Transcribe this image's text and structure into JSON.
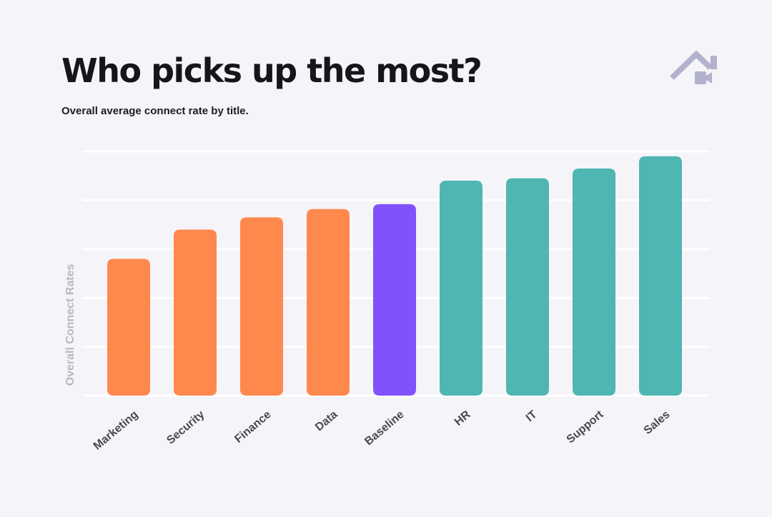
{
  "header": {
    "title": "Who picks up the most?",
    "subtitle": "Overall average connect rate by title."
  },
  "logo": {
    "icon": "house-video-icon",
    "color": "#b3b2cc"
  },
  "chart_data": {
    "type": "bar",
    "title": "Who picks up the most?",
    "subtitle": "Overall average connect rate by title.",
    "xlabel": "",
    "ylabel": "Overall Connect Rates",
    "categories": [
      "Marketing",
      "Security",
      "Finance",
      "Data",
      "Baseline",
      "HR",
      "IT",
      "Support",
      "Sales"
    ],
    "values": [
      2.8,
      3.4,
      3.65,
      3.82,
      3.92,
      4.4,
      4.45,
      4.65,
      4.9
    ],
    "ylim": [
      0,
      5
    ],
    "y_ticks_labeled": false,
    "grid": true,
    "legend": "none",
    "colors": [
      "#ff884d",
      "#ff884d",
      "#ff884d",
      "#ff884d",
      "#7f52fb",
      "#4fb6b2",
      "#4fb6b2",
      "#4fb6b2",
      "#4fb6b2"
    ]
  }
}
